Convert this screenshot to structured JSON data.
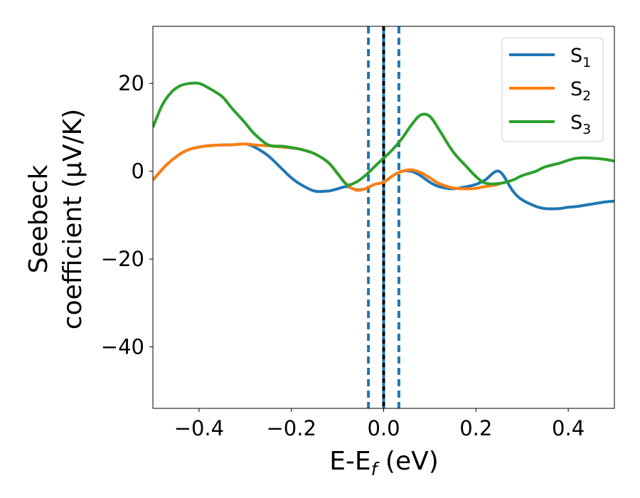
{
  "chart_data": {
    "type": "line",
    "xlabel": "E-E",
    "xlabel_sub": "f",
    "xlabel_unit": " (eV)",
    "ylabel_line1": "Seebeck",
    "ylabel_line2": "coefficient  (μV/K)",
    "xlim": [
      -0.5,
      0.5
    ],
    "ylim": [
      -54,
      33
    ],
    "x_ticks": [
      -0.4,
      -0.2,
      0.0,
      0.2,
      0.4
    ],
    "x_tick_labels": [
      "−0.4",
      "−0.2",
      "0.0",
      "0.2",
      "0.4"
    ],
    "y_ticks": [
      20,
      0,
      -20,
      -40
    ],
    "y_tick_labels": [
      "20",
      "0",
      "−20",
      "−40"
    ],
    "grid": false,
    "legend_position": "top-right",
    "vertical_lines": [
      {
        "x": -0.033,
        "style": "dashed",
        "color": "#1f77b4"
      },
      {
        "x": 0.0,
        "style": "solid",
        "color": "#1f77b4"
      },
      {
        "x": 0.0,
        "style": "dashed",
        "color": "#000000"
      },
      {
        "x": 0.033,
        "style": "dashed",
        "color": "#1f77b4"
      }
    ],
    "series": [
      {
        "name": "S",
        "sub": "1",
        "color": "#1f77b4",
        "x": [
          -0.5,
          -0.47,
          -0.44,
          -0.42,
          -0.4,
          -0.38,
          -0.35,
          -0.33,
          -0.3,
          -0.28,
          -0.25,
          -0.22,
          -0.2,
          -0.18,
          -0.15,
          -0.12,
          -0.1,
          -0.08,
          -0.06,
          -0.04,
          -0.02,
          0.0,
          0.02,
          0.04,
          0.06,
          0.08,
          0.1,
          0.12,
          0.15,
          0.18,
          0.2,
          0.22,
          0.25,
          0.28,
          0.3,
          0.33,
          0.35,
          0.38,
          0.4,
          0.42,
          0.45,
          0.48,
          0.5
        ],
        "y": [
          -2.0,
          1.5,
          4.0,
          5.0,
          5.5,
          5.8,
          6.0,
          6.0,
          6.2,
          5.5,
          3.5,
          0.5,
          -1.5,
          -3.0,
          -4.5,
          -4.5,
          -4.0,
          -3.5,
          -4.2,
          -4.0,
          -3.0,
          -2.5,
          -1.0,
          0.0,
          0.0,
          -1.0,
          -2.5,
          -3.5,
          -4.0,
          -3.5,
          -3.0,
          -2.0,
          0.0,
          -4.5,
          -6.5,
          -8.0,
          -8.5,
          -8.5,
          -8.2,
          -8.0,
          -7.5,
          -7.0,
          -6.8
        ]
      },
      {
        "name": "S",
        "sub": "2",
        "color": "#ff7f0e",
        "x": [
          -0.5,
          -0.47,
          -0.44,
          -0.42,
          -0.4,
          -0.38,
          -0.35,
          -0.33,
          -0.3,
          -0.28,
          -0.25,
          -0.22,
          -0.2,
          -0.18,
          -0.15,
          -0.12,
          -0.1,
          -0.08,
          -0.06,
          -0.04,
          -0.02,
          0.0,
          0.02,
          0.04,
          0.06,
          0.08,
          0.1,
          0.12,
          0.15,
          0.18,
          0.2,
          0.22,
          0.25
        ],
        "y": [
          -2.0,
          1.5,
          4.0,
          5.0,
          5.5,
          5.8,
          6.0,
          6.0,
          6.2,
          6.0,
          5.8,
          5.5,
          5.3,
          5.0,
          4.0,
          2.0,
          -0.5,
          -3.0,
          -4.3,
          -4.0,
          -3.0,
          -2.5,
          -1.0,
          0.0,
          0.3,
          -0.3,
          -1.5,
          -2.8,
          -3.8,
          -4.0,
          -3.9,
          -3.5,
          -3.0
        ]
      },
      {
        "name": "S",
        "sub": "3",
        "color": "#2ca02c",
        "x": [
          -0.5,
          -0.48,
          -0.46,
          -0.44,
          -0.42,
          -0.4,
          -0.38,
          -0.35,
          -0.33,
          -0.3,
          -0.28,
          -0.25,
          -0.22,
          -0.2,
          -0.18,
          -0.15,
          -0.12,
          -0.1,
          -0.08,
          -0.06,
          -0.04,
          -0.02,
          0.0,
          0.02,
          0.04,
          0.06,
          0.08,
          0.1,
          0.12,
          0.15,
          0.18,
          0.2,
          0.22,
          0.25,
          0.28,
          0.3,
          0.33,
          0.35,
          0.38,
          0.4,
          0.42,
          0.45,
          0.48,
          0.5
        ],
        "y": [
          10.0,
          15.0,
          18.0,
          19.5,
          20.0,
          20.0,
          19.0,
          17.0,
          14.5,
          11.0,
          8.5,
          6.0,
          5.7,
          5.4,
          5.0,
          4.0,
          2.0,
          -0.5,
          -3.0,
          -2.5,
          -1.0,
          1.0,
          3.0,
          5.0,
          7.5,
          10.5,
          12.8,
          12.5,
          9.5,
          4.5,
          1.0,
          -1.2,
          -2.7,
          -2.8,
          -2.0,
          -1.0,
          0.0,
          1.0,
          1.8,
          2.5,
          3.0,
          3.0,
          2.7,
          2.3
        ]
      }
    ]
  }
}
